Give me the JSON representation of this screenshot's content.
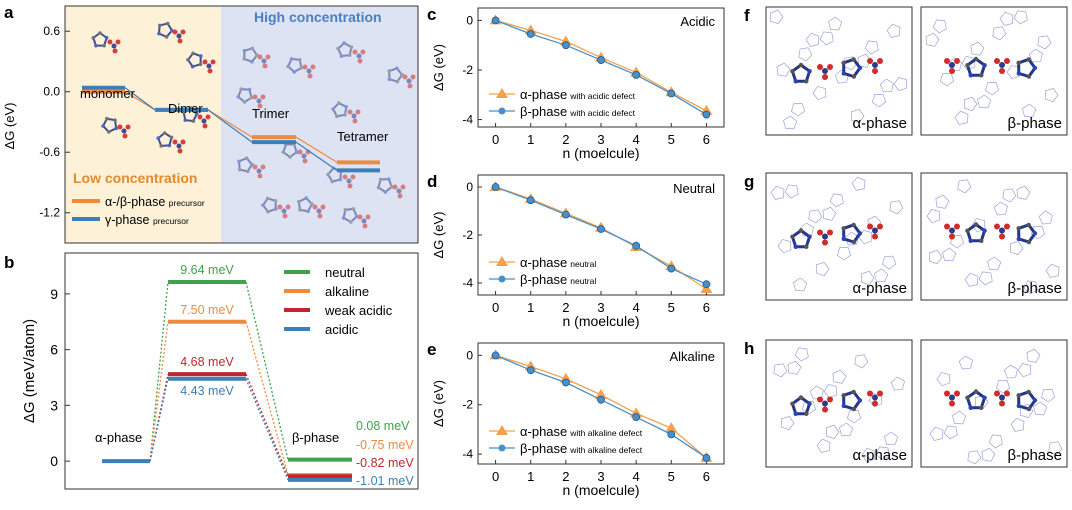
{
  "panel_letters": {
    "a": "a",
    "b": "b",
    "c": "c",
    "d": "d",
    "e": "e",
    "f": "f",
    "g": "g",
    "h": "h"
  },
  "colors": {
    "alpha": "#f5a04b",
    "beta": "#4a90c8",
    "orange_bar": "#f08a3c",
    "blue_bar": "#3f7fb8",
    "green": "#3fa34d",
    "red": "#c0272d",
    "low_bg": "#fdf1d8",
    "high_bg": "#dde3f3",
    "c_atom": "#2a3c8f",
    "o_atom": "#d22b2b"
  },
  "panel_a": {
    "ylabel": "ΔG (eV)",
    "yticks": [
      "0.6",
      "0.0",
      "-0.6",
      "-1.2"
    ],
    "ytick_values": [
      0.6,
      0.0,
      -0.6,
      -1.2
    ],
    "ylim": [
      -1.5,
      0.85
    ],
    "high_label": "High concentration",
    "low_label": "Low concentration",
    "stages": [
      "monomer",
      "Dimer",
      "Trimer",
      "Tetramer"
    ],
    "alpha_beta_levels": [
      0.0,
      -0.18,
      -0.45,
      -0.7
    ],
    "gamma_levels": [
      0.04,
      -0.18,
      -0.5,
      -0.78
    ],
    "legend": [
      {
        "main": "α-/β-phase",
        "sub": "precursor"
      },
      {
        "main": "γ-phase",
        "sub": "precursor"
      }
    ]
  },
  "panel_b": {
    "ylabel": "ΔG (meV/atom)",
    "yticks": [
      "0",
      "3",
      "6",
      "9"
    ],
    "ylim": [
      -1.5,
      11.2
    ],
    "left_label": "α-phase",
    "right_label": "β-phase",
    "series": [
      {
        "name": "neutral",
        "color": "#3fa34d",
        "barrier": 9.64,
        "barrier_label": "9.64 meV",
        "final": 0.08,
        "final_label": "0.08 meV"
      },
      {
        "name": "alkaline",
        "color": "#f08a3c",
        "barrier": 7.5,
        "barrier_label": "7.50 meV",
        "final": -0.75,
        "final_label": "-0.75 meV"
      },
      {
        "name": "weak acidic",
        "color": "#c0272d",
        "barrier": 4.68,
        "barrier_label": "4.68 meV",
        "final": -0.82,
        "final_label": "-0.82 meV"
      },
      {
        "name": "acidic",
        "color": "#3f7fb8",
        "barrier": 4.43,
        "barrier_label": "4.43 meV",
        "final": -1.01,
        "final_label": "-1.01 meV"
      }
    ]
  },
  "chart_data": [
    {
      "panel": "c",
      "type": "line",
      "title": "Acidic",
      "xlabel": "n (moelcule)",
      "ylabel": "ΔG (eV)",
      "x": [
        0,
        1,
        2,
        3,
        4,
        5,
        6
      ],
      "ylim": [
        -4.3,
        0.5
      ],
      "yticks": [
        0,
        -2,
        -4
      ],
      "series": [
        {
          "name": "α-phase",
          "sub": "with acidic defect",
          "values": [
            0,
            -0.4,
            -0.85,
            -1.5,
            -2.1,
            -2.9,
            -3.65
          ]
        },
        {
          "name": "β-phase",
          "sub": "with acidic defect",
          "values": [
            0,
            -0.55,
            -1.0,
            -1.6,
            -2.2,
            -2.95,
            -3.8
          ]
        }
      ]
    },
    {
      "panel": "d",
      "type": "line",
      "title": "Neutral",
      "xlabel": "n (moelcule)",
      "ylabel": "ΔG (eV)",
      "x": [
        0,
        1,
        2,
        3,
        4,
        5,
        6
      ],
      "ylim": [
        -4.5,
        0.5
      ],
      "yticks": [
        0,
        -2,
        -4
      ],
      "series": [
        {
          "name": "α-phase",
          "sub": "neutral",
          "values": [
            0,
            -0.5,
            -1.1,
            -1.7,
            -2.5,
            -3.3,
            -4.25
          ]
        },
        {
          "name": "β-phase",
          "sub": "neutral",
          "values": [
            0,
            -0.55,
            -1.15,
            -1.75,
            -2.45,
            -3.4,
            -4.05
          ]
        }
      ]
    },
    {
      "panel": "e",
      "type": "line",
      "title": "Alkaline",
      "xlabel": "n (moelcule)",
      "ylabel": "ΔG (eV)",
      "x": [
        0,
        1,
        2,
        3,
        4,
        5,
        6
      ],
      "ylim": [
        -4.4,
        0.5
      ],
      "yticks": [
        0,
        -2,
        -4
      ],
      "series": [
        {
          "name": "α-phase",
          "sub": "with alkaline defect",
          "values": [
            0,
            -0.45,
            -0.95,
            -1.6,
            -2.35,
            -2.95,
            -4.15
          ]
        },
        {
          "name": "β-phase",
          "sub": "with alkaline defect",
          "values": [
            0,
            -0.6,
            -1.1,
            -1.8,
            -2.5,
            -3.2,
            -4.15
          ]
        }
      ]
    }
  ],
  "structure_panels": [
    {
      "letter": "f",
      "labels": [
        "α-phase",
        "β-phase"
      ]
    },
    {
      "letter": "g",
      "labels": [
        "α-phase",
        "β-phase"
      ]
    },
    {
      "letter": "h",
      "labels": [
        "α-phase",
        "β-phase"
      ]
    }
  ]
}
